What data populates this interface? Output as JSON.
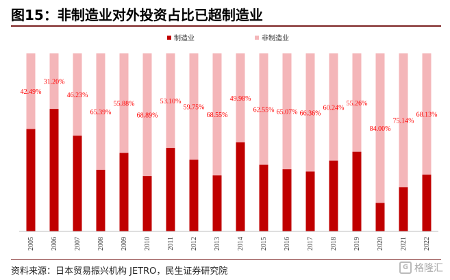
{
  "title": "图15：非制造业对外投资占比已超制造业",
  "source": "资料来源：日本贸易振兴机构 JETRO，民生证券研究院",
  "watermark": "格隆汇",
  "colors": {
    "manufacturing": "#c00000",
    "non_manufacturing": "#f4b6b9",
    "label": "#ff0000",
    "rule": "#7a1f1f"
  },
  "chart_data": {
    "type": "bar",
    "stacked": true,
    "percent_stacked": true,
    "categories": [
      "2005",
      "2006",
      "2007",
      "2008",
      "2009",
      "2010",
      "2011",
      "2012",
      "2013",
      "2014",
      "2015",
      "2016",
      "2017",
      "2018",
      "2019",
      "2020",
      "2021",
      "2022"
    ],
    "series": [
      {
        "name": "制造业",
        "values": [
          57.51,
          68.8,
          53.77,
          34.61,
          44.12,
          31.11,
          46.9,
          40.25,
          31.45,
          50.02,
          37.45,
          34.93,
          33.64,
          39.76,
          44.74,
          16.0,
          24.86,
          31.87
        ]
      },
      {
        "name": "非制造业",
        "values": [
          42.49,
          31.2,
          46.23,
          65.39,
          55.88,
          68.89,
          53.1,
          59.75,
          68.55,
          49.98,
          62.55,
          65.07,
          66.36,
          60.24,
          55.26,
          84.0,
          75.14,
          68.13
        ]
      }
    ],
    "data_labels": [
      "42.49%",
      "31.20%",
      "46.23%",
      "65.39%",
      "55.88%",
      "68.89%",
      "53.10%",
      "59.75%",
      "68.55%",
      "49.98%",
      "62.55%",
      "65.07%",
      "66.36%",
      "60.24%",
      "55.26%",
      "84.00%",
      "75.14%",
      "68.13%"
    ],
    "ylim": [
      0,
      100
    ],
    "legend": "top-center",
    "grid": false
  }
}
